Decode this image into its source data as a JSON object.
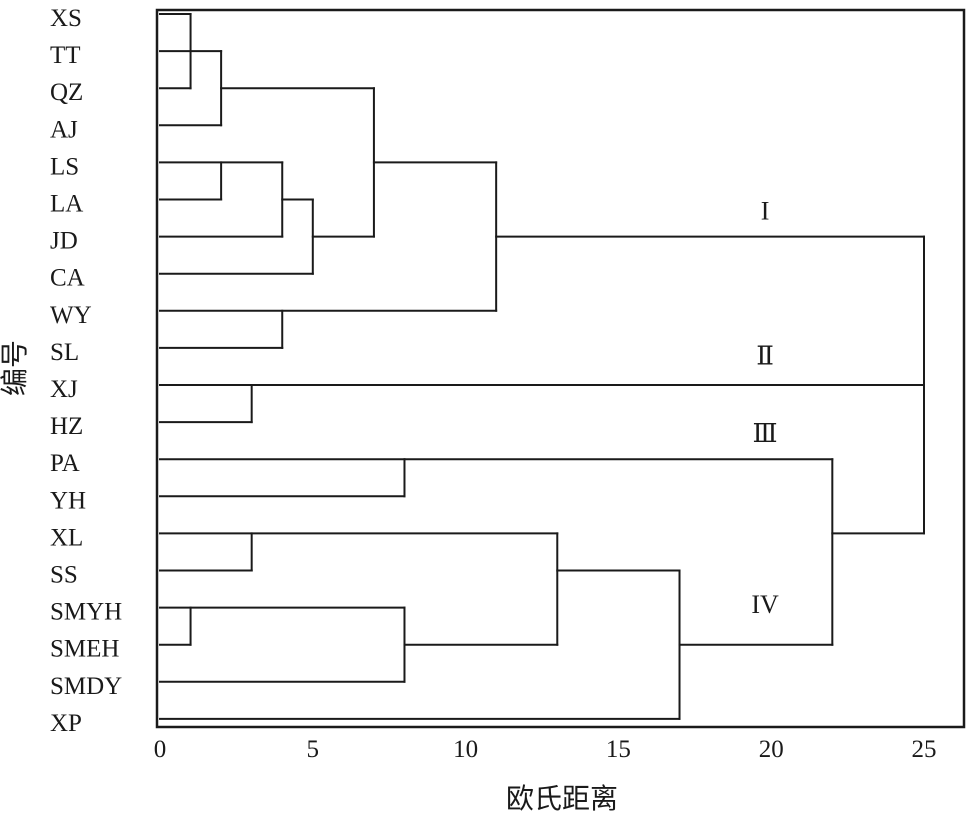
{
  "chart_data": {
    "type": "dendrogram",
    "xlabel": "欧氏距离",
    "ylabel": "编号",
    "xlim": [
      0,
      25
    ],
    "xticks": [
      0,
      5,
      10,
      15,
      20,
      25
    ],
    "leaves": [
      "XS",
      "TT",
      "QZ",
      "AJ",
      "LS",
      "LA",
      "JD",
      "CA",
      "WY",
      "SL",
      "XJ",
      "HZ",
      "PA",
      "YH",
      "XL",
      "SS",
      "SMYH",
      "SMEH",
      "SMDY",
      "XP"
    ],
    "cluster_labels": [
      {
        "text": "I",
        "distance": 19.8,
        "leaf_pos": 5.3
      },
      {
        "text": "Ⅱ",
        "distance": 19.8,
        "leaf_pos": 9.2
      },
      {
        "text": "Ⅲ",
        "distance": 19.8,
        "leaf_pos": 11.3
      },
      {
        "text": "IV",
        "distance": 19.8,
        "leaf_pos": 15.9
      }
    ],
    "segments_note": "each segment is [distance1, leaf_pos1, distance2, leaf_pos2]",
    "segments": [
      [
        0,
        0,
        1,
        0
      ],
      [
        1,
        0,
        1,
        2
      ],
      [
        0,
        2,
        1,
        2
      ],
      [
        0,
        1,
        2,
        1
      ],
      [
        2,
        1,
        2,
        3
      ],
      [
        0,
        3,
        2,
        3
      ],
      [
        2,
        2,
        7,
        2
      ],
      [
        0,
        4,
        4,
        4
      ],
      [
        0,
        5,
        2,
        5
      ],
      [
        2,
        4,
        2,
        5
      ],
      [
        4,
        4,
        4,
        6
      ],
      [
        0,
        6,
        4,
        6
      ],
      [
        4,
        5,
        5,
        5
      ],
      [
        5,
        5,
        5,
        7
      ],
      [
        0,
        7,
        5,
        7
      ],
      [
        5,
        6,
        7,
        6
      ],
      [
        7,
        2,
        7,
        6
      ],
      [
        7,
        4,
        11,
        4
      ],
      [
        11,
        4,
        11,
        8
      ],
      [
        0,
        8,
        11,
        8
      ],
      [
        4,
        8,
        4,
        9
      ],
      [
        0,
        9,
        4,
        9
      ],
      [
        11,
        6,
        25,
        6
      ],
      [
        0,
        10,
        25,
        10
      ],
      [
        3,
        10,
        3,
        11
      ],
      [
        0,
        11,
        3,
        11
      ],
      [
        0,
        12,
        22,
        12
      ],
      [
        8,
        12,
        8,
        13
      ],
      [
        0,
        13,
        8,
        13
      ],
      [
        0,
        14,
        13,
        14
      ],
      [
        3,
        14,
        3,
        15
      ],
      [
        0,
        15,
        3,
        15
      ],
      [
        13,
        14,
        13,
        17
      ],
      [
        0,
        16,
        8,
        16
      ],
      [
        1,
        16,
        1,
        17
      ],
      [
        0,
        17,
        1,
        17
      ],
      [
        8,
        16,
        8,
        18
      ],
      [
        0,
        18,
        8,
        18
      ],
      [
        8,
        17,
        13,
        17
      ],
      [
        13,
        15,
        17,
        15
      ],
      [
        17,
        15,
        17,
        19
      ],
      [
        0,
        19,
        17,
        19
      ],
      [
        17,
        17,
        22,
        17
      ],
      [
        22,
        12,
        22,
        17
      ],
      [
        22,
        14,
        25,
        14
      ],
      [
        25,
        6,
        25,
        14
      ]
    ]
  }
}
